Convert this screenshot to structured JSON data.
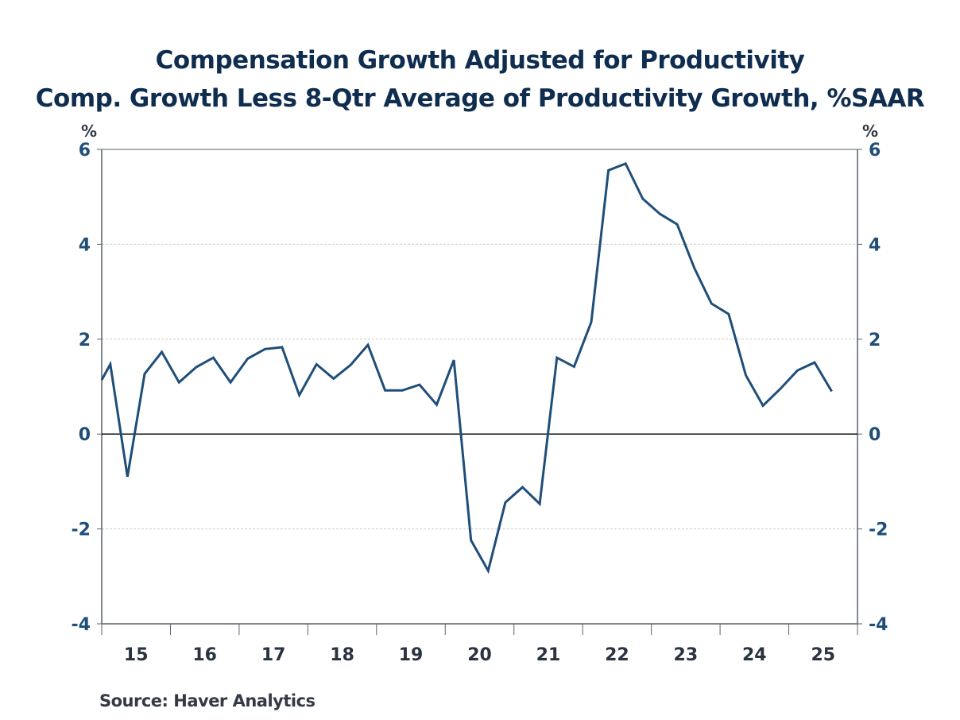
{
  "chart_data": {
    "type": "line",
    "title": "Compensation Growth Adjusted for Productivity",
    "subtitle": "Comp. Growth Less 8-Qtr Average of Productivity Growth, %SAAR",
    "ylabel_left": "%",
    "ylabel_right": "%",
    "xlabel": "",
    "ylim": [
      -4,
      6
    ],
    "yticks": [
      6,
      4,
      2,
      0,
      -2,
      -4
    ],
    "ytick_labels": [
      "6",
      "4",
      "2",
      "0",
      "-2",
      "-4"
    ],
    "xtick_labels": [
      "15",
      "16",
      "17",
      "18",
      "19",
      "20",
      "21",
      "22",
      "23",
      "24",
      "25"
    ],
    "grid": "horizontal dashed",
    "zero_line": true,
    "x_start": "2014Q4",
    "x_frequency": "quarterly",
    "series": [
      {
        "name": "Compensation Growth Adjusted for Productivity",
        "color": "#1f4e79",
        "x": [
          "2014Q4",
          "2015Q1",
          "2015Q2",
          "2015Q3",
          "2015Q4",
          "2016Q1",
          "2016Q2",
          "2016Q3",
          "2016Q4",
          "2017Q1",
          "2017Q2",
          "2017Q3",
          "2017Q4",
          "2018Q1",
          "2018Q2",
          "2018Q3",
          "2018Q4",
          "2019Q1",
          "2019Q2",
          "2019Q3",
          "2019Q4",
          "2020Q1",
          "2020Q2",
          "2020Q3",
          "2020Q4",
          "2021Q1",
          "2021Q2",
          "2021Q3",
          "2021Q4",
          "2022Q1",
          "2022Q2",
          "2022Q3",
          "2022Q4",
          "2023Q1",
          "2023Q2",
          "2023Q3",
          "2023Q4",
          "2024Q1",
          "2024Q2",
          "2024Q3",
          "2024Q4",
          "2025Q1",
          "2025Q2",
          "2025Q3"
        ],
        "values": [
          1.14,
          1.47,
          -0.9,
          1.27,
          1.73,
          1.09,
          1.41,
          1.61,
          1.09,
          1.59,
          1.79,
          1.83,
          0.82,
          1.47,
          1.17,
          1.46,
          1.88,
          0.92,
          0.92,
          1.04,
          0.62,
          1.56,
          -2.24,
          -2.88,
          -1.44,
          -1.12,
          -1.47,
          1.61,
          1.42,
          2.36,
          5.56,
          5.7,
          4.96,
          4.64,
          4.42,
          3.5,
          2.75,
          2.53,
          1.24,
          0.6,
          0.95,
          1.34,
          1.51,
          0.9
        ]
      }
    ],
    "source": "Source:  Haver Analytics"
  },
  "colors": {
    "title": "#0f2d4f",
    "tick_label": "#1f4e79",
    "line": "#1f4e79",
    "axis": "#5a6270",
    "grid": "#cccccc"
  }
}
